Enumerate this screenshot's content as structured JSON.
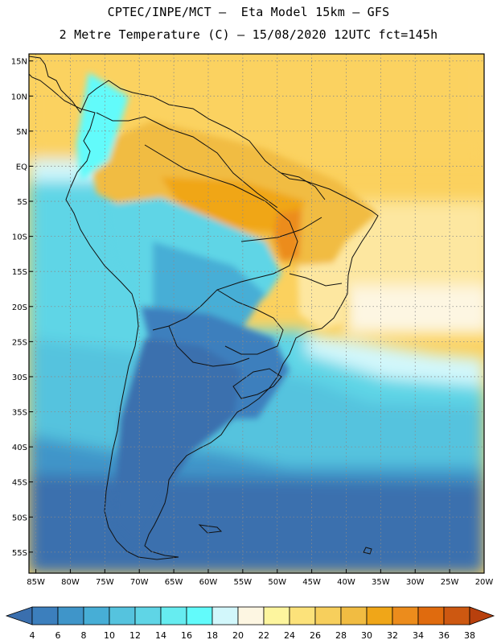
{
  "header": {
    "line1": "CPTEC/INPE/MCT –  Eta Model 15km – GFS",
    "line2": "2 Metre Temperature (C) – 15/08/2020 12UTC fct=145h"
  },
  "map": {
    "variable": "2 Metre Temperature",
    "units": "C",
    "lon_range": [
      -86,
      -20
    ],
    "lat_range": [
      -58,
      16
    ],
    "lat_ticks": [
      {
        "value": 15,
        "label": "15N"
      },
      {
        "value": 10,
        "label": "10N"
      },
      {
        "value": 5,
        "label": "5N"
      },
      {
        "value": 0,
        "label": "EQ"
      },
      {
        "value": -5,
        "label": "5S"
      },
      {
        "value": -10,
        "label": "10S"
      },
      {
        "value": -15,
        "label": "15S"
      },
      {
        "value": -20,
        "label": "20S"
      },
      {
        "value": -25,
        "label": "25S"
      },
      {
        "value": -30,
        "label": "30S"
      },
      {
        "value": -35,
        "label": "35S"
      },
      {
        "value": -40,
        "label": "40S"
      },
      {
        "value": -45,
        "label": "45S"
      },
      {
        "value": -50,
        "label": "50S"
      },
      {
        "value": -55,
        "label": "55S"
      }
    ],
    "lon_ticks": [
      {
        "value": -85,
        "label": "85W"
      },
      {
        "value": -80,
        "label": "80W"
      },
      {
        "value": -75,
        "label": "75W"
      },
      {
        "value": -70,
        "label": "70W"
      },
      {
        "value": -65,
        "label": "65W"
      },
      {
        "value": -60,
        "label": "60W"
      },
      {
        "value": -55,
        "label": "55W"
      },
      {
        "value": -50,
        "label": "50W"
      },
      {
        "value": -45,
        "label": "45W"
      },
      {
        "value": -40,
        "label": "40W"
      },
      {
        "value": -35,
        "label": "35W"
      },
      {
        "value": -30,
        "label": "30W"
      },
      {
        "value": -25,
        "label": "25W"
      },
      {
        "value": -20,
        "label": "20W"
      }
    ],
    "grid": true
  },
  "colorbar": {
    "labels": [
      "4",
      "6",
      "8",
      "10",
      "12",
      "14",
      "16",
      "18",
      "20",
      "22",
      "24",
      "26",
      "28",
      "30",
      "32",
      "34",
      "36",
      "38"
    ],
    "colors": [
      "#3a6fae",
      "#3c7fbd",
      "#3f95c9",
      "#47aed6",
      "#55c3de",
      "#5fd5e6",
      "#66ecf0",
      "#62fbfb",
      "#d2f7fb",
      "#fdf6e2",
      "#fdf59e",
      "#fce27a",
      "#f7cf5c",
      "#f1bc42",
      "#f0a618",
      "#ec8c1c",
      "#e06b0e",
      "#cd5811",
      "#b8400d"
    ]
  }
}
